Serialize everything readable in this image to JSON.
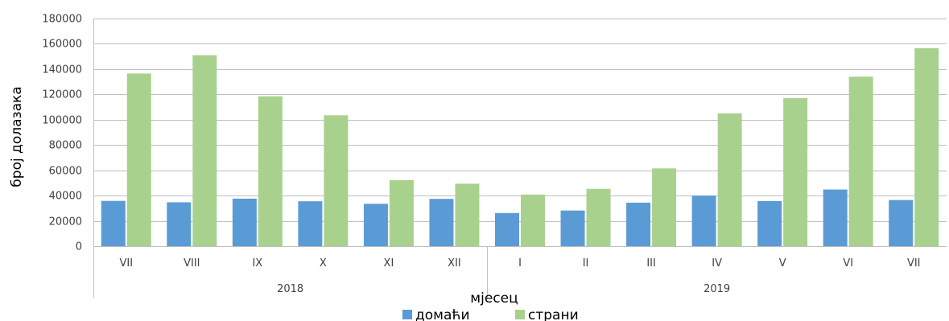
{
  "chart_data": {
    "type": "bar",
    "ylabel": "број долазака",
    "xlabel": "мјесец",
    "ylim": [
      0,
      180000
    ],
    "y_ticks": [
      0,
      20000,
      40000,
      60000,
      80000,
      100000,
      120000,
      140000,
      160000,
      180000
    ],
    "grid": true,
    "legend_position": "bottom",
    "categories": [
      "VII",
      "VIII",
      "IX",
      "X",
      "XI",
      "XII",
      "I",
      "II",
      "III",
      "IV",
      "V",
      "VI",
      "VII"
    ],
    "groups": [
      {
        "label": "2018",
        "count": 6
      },
      {
        "label": "2019",
        "count": 7
      }
    ],
    "series": [
      {
        "name": "домаћи",
        "color": "#5B9BD5",
        "values": [
          35800,
          34700,
          37600,
          35500,
          33500,
          37400,
          26200,
          28200,
          34400,
          40000,
          35700,
          44800,
          36500
        ]
      },
      {
        "name": "страни",
        "color": "#A9D18E",
        "values": [
          136500,
          151000,
          118500,
          103500,
          52200,
          49400,
          40800,
          45300,
          61500,
          105000,
          117000,
          134000,
          156500
        ]
      }
    ]
  }
}
